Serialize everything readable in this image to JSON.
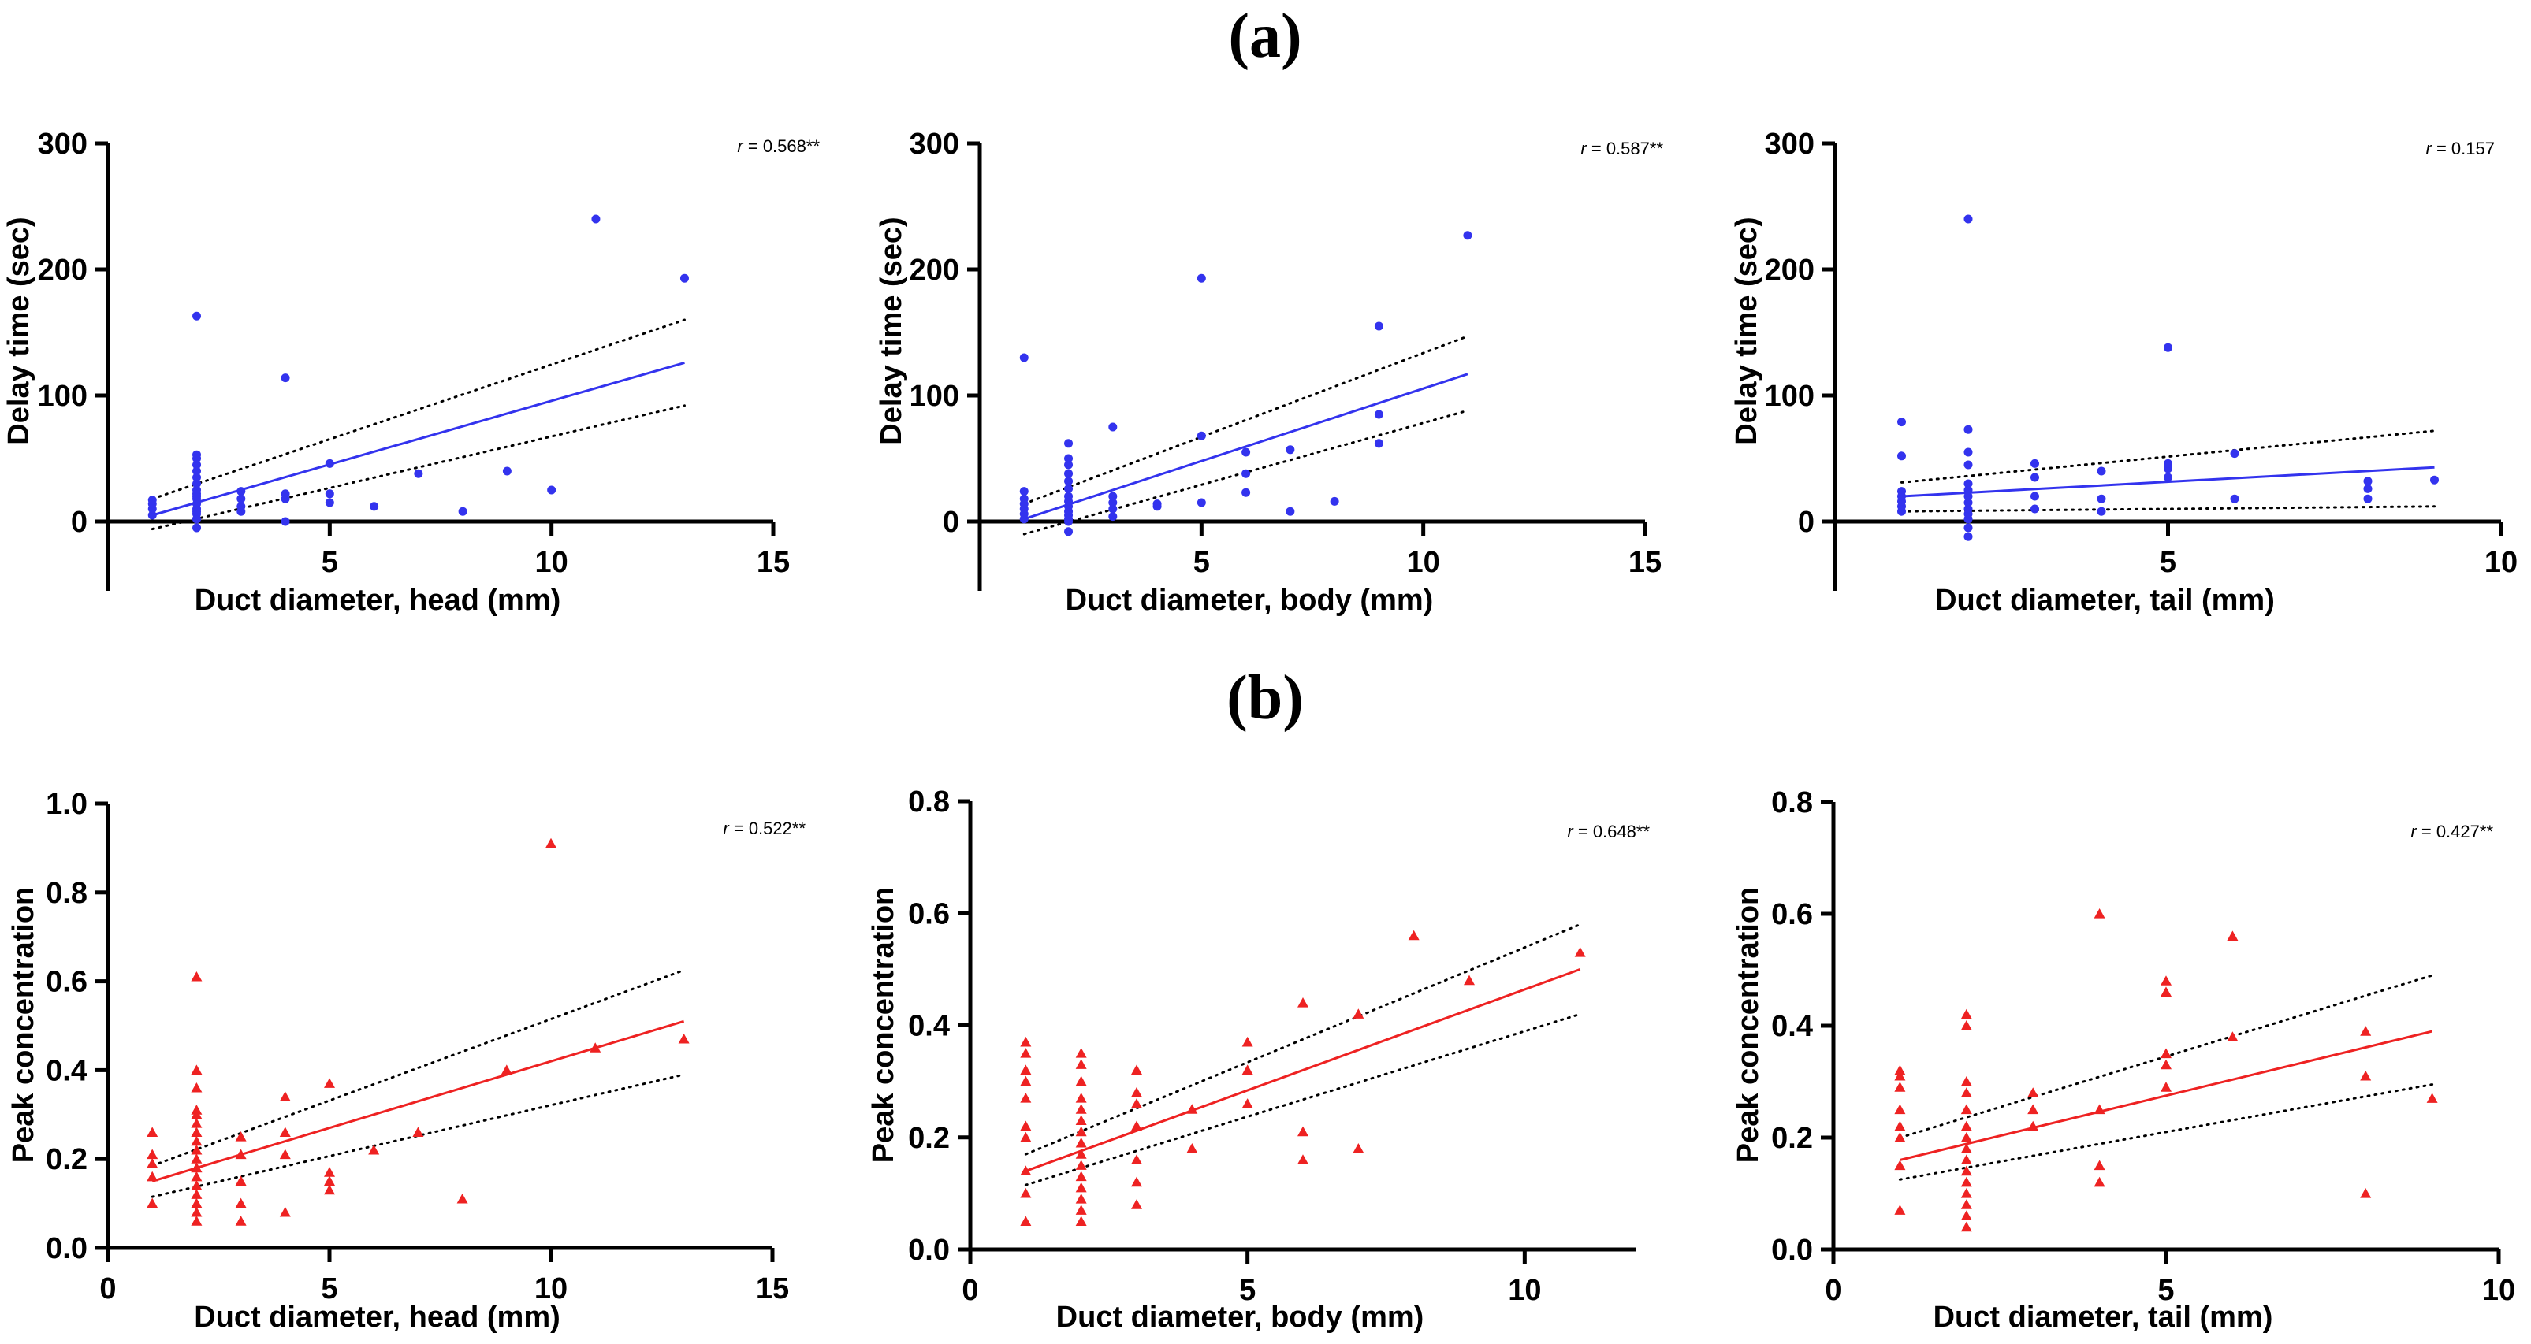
{
  "panel_labels": {
    "a": "(a)",
    "b": "(b)"
  },
  "colors": {
    "blue": "#3333ee",
    "red": "#ee2222"
  },
  "chart_data": [
    {
      "type": "scatter",
      "id": "a1",
      "color": "blue",
      "marker": "circle",
      "ylabel": "Delay time (sec)",
      "xlabel": "Duct diameter, head (mm)",
      "r_label": "r",
      "r_value": "= 0.568**",
      "xlim": [
        0,
        15
      ],
      "ylim": [
        -55,
        300
      ],
      "xticks": [
        5,
        10,
        15
      ],
      "yticks": [
        0,
        100,
        200,
        300
      ],
      "x": [
        1,
        1,
        1,
        1,
        2,
        2,
        2,
        2,
        2,
        2,
        2,
        2,
        2,
        2,
        2,
        2,
        2,
        2,
        2,
        2,
        2,
        2,
        3,
        3,
        3,
        3,
        4,
        4,
        4,
        4,
        5,
        5,
        5,
        6,
        7,
        8,
        9,
        10,
        11,
        13
      ],
      "y": [
        5,
        10,
        14,
        17,
        -5,
        2,
        6,
        10,
        14,
        18,
        22,
        25,
        30,
        35,
        40,
        45,
        50,
        53,
        2,
        8,
        20,
        163,
        8,
        12,
        18,
        24,
        0,
        18,
        22,
        114,
        15,
        22,
        46,
        12,
        38,
        8,
        40,
        25,
        240,
        193
      ],
      "fit": [
        [
          1,
          5
        ],
        [
          13,
          126
        ]
      ],
      "ci_upper": [
        [
          1,
          18
        ],
        [
          13,
          160
        ]
      ],
      "ci_lower": [
        [
          1,
          -6
        ],
        [
          13,
          92
        ]
      ]
    },
    {
      "type": "scatter",
      "id": "a2",
      "color": "blue",
      "marker": "circle",
      "ylabel": "Delay time  (sec)",
      "xlabel": "Duct diameter, body (mm)",
      "r_label": "r",
      "r_value": "= 0.587**",
      "xlim": [
        0,
        15
      ],
      "ylim": [
        -55,
        300
      ],
      "xticks": [
        5,
        10,
        15
      ],
      "yticks": [
        0,
        100,
        200,
        300
      ],
      "x": [
        1,
        1,
        1,
        1,
        1,
        1,
        1,
        2,
        2,
        2,
        2,
        2,
        2,
        2,
        2,
        2,
        2,
        2,
        2,
        2,
        2,
        3,
        3,
        3,
        3,
        3,
        4,
        4,
        5,
        5,
        5,
        6,
        6,
        6,
        7,
        7,
        8,
        9,
        9,
        9,
        11
      ],
      "y": [
        2,
        6,
        10,
        14,
        18,
        24,
        130,
        -8,
        0,
        5,
        8,
        12,
        16,
        20,
        26,
        32,
        38,
        45,
        50,
        62,
        2,
        4,
        10,
        15,
        20,
        75,
        12,
        14,
        15,
        68,
        193,
        23,
        38,
        55,
        8,
        57,
        16,
        62,
        85,
        155,
        227
      ],
      "fit": [
        [
          1,
          2
        ],
        [
          11,
          117
        ]
      ],
      "ci_upper": [
        [
          1,
          14
        ],
        [
          11,
          147
        ]
      ],
      "ci_lower": [
        [
          1,
          -10
        ],
        [
          11,
          88
        ]
      ]
    },
    {
      "type": "scatter",
      "id": "a3",
      "color": "blue",
      "marker": "circle",
      "ylabel": "Delay time  (sec)",
      "xlabel": "Duct diameter, tail  (mm)",
      "r_label": "r",
      "r_value": "= 0.157",
      "xlim": [
        0,
        10
      ],
      "ylim": [
        -55,
        300
      ],
      "xticks": [
        5,
        10
      ],
      "yticks": [
        0,
        100,
        200,
        300
      ],
      "x": [
        1,
        1,
        1,
        1,
        1,
        1,
        1,
        2,
        2,
        2,
        2,
        2,
        2,
        2,
        2,
        2,
        2,
        2,
        2,
        2,
        3,
        3,
        3,
        3,
        4,
        4,
        4,
        5,
        5,
        5,
        5,
        6,
        6,
        8,
        8,
        8,
        9
      ],
      "y": [
        8,
        12,
        16,
        20,
        24,
        52,
        79,
        -12,
        -5,
        2,
        6,
        10,
        15,
        20,
        25,
        30,
        45,
        55,
        73,
        240,
        10,
        20,
        35,
        46,
        8,
        18,
        40,
        35,
        42,
        46,
        138,
        18,
        54,
        18,
        26,
        32,
        33
      ],
      "fit": [
        [
          1,
          20
        ],
        [
          9,
          43
        ]
      ],
      "ci_upper": [
        [
          1,
          31
        ],
        [
          9,
          72
        ]
      ],
      "ci_lower": [
        [
          1,
          8
        ],
        [
          9,
          12
        ]
      ]
    },
    {
      "type": "scatter",
      "id": "b1",
      "color": "red",
      "marker": "triangle",
      "ylabel": "Peak concentration",
      "xlabel": "Duct diameter, head (mm)",
      "r_label": "r",
      "r_value": "= 0.522**",
      "xlim": [
        0,
        15
      ],
      "ylim": [
        0,
        1.0
      ],
      "xticks": [
        0,
        5,
        10,
        15
      ],
      "yticks": [
        0.0,
        0.2,
        0.4,
        0.6,
        0.8,
        1.0
      ],
      "x": [
        1,
        1,
        1,
        1,
        1,
        2,
        2,
        2,
        2,
        2,
        2,
        2,
        2,
        2,
        2,
        2,
        2,
        2,
        2,
        2,
        2,
        2,
        2,
        3,
        3,
        3,
        3,
        3,
        4,
        4,
        4,
        4,
        5,
        5,
        5,
        5,
        6,
        7,
        8,
        9,
        10,
        11,
        13
      ],
      "y": [
        0.1,
        0.16,
        0.19,
        0.21,
        0.26,
        0.06,
        0.08,
        0.1,
        0.12,
        0.14,
        0.16,
        0.18,
        0.2,
        0.22,
        0.24,
        0.26,
        0.28,
        0.3,
        0.31,
        0.36,
        0.4,
        0.61,
        0.18,
        0.06,
        0.1,
        0.15,
        0.21,
        0.25,
        0.08,
        0.21,
        0.26,
        0.34,
        0.13,
        0.15,
        0.17,
        0.37,
        0.22,
        0.26,
        0.11,
        0.4,
        0.91,
        0.45,
        0.47
      ],
      "fit": [
        [
          1,
          0.15
        ],
        [
          13,
          0.51
        ]
      ],
      "ci_upper": [
        [
          1,
          0.185
        ],
        [
          13,
          0.625
        ]
      ],
      "ci_lower": [
        [
          1,
          0.115
        ],
        [
          13,
          0.39
        ]
      ]
    },
    {
      "type": "scatter",
      "id": "b2",
      "color": "red",
      "marker": "triangle",
      "ylabel": "Peak concentration",
      "xlabel": "Duct diameter, body (mm)",
      "r_label": "r",
      "r_value": "= 0.648**",
      "xlim": [
        0,
        12
      ],
      "ylim": [
        0,
        0.8
      ],
      "xticks": [
        0,
        5,
        10
      ],
      "yticks": [
        0.0,
        0.2,
        0.4,
        0.6,
        0.8
      ],
      "x": [
        1,
        1,
        1,
        1,
        1,
        1,
        1,
        1,
        1,
        1,
        2,
        2,
        2,
        2,
        2,
        2,
        2,
        2,
        2,
        2,
        2,
        2,
        2,
        2,
        2,
        3,
        3,
        3,
        3,
        3,
        3,
        3,
        4,
        4,
        5,
        5,
        5,
        6,
        6,
        6,
        7,
        7,
        8,
        9,
        11
      ],
      "y": [
        0.05,
        0.1,
        0.14,
        0.2,
        0.22,
        0.27,
        0.3,
        0.32,
        0.35,
        0.37,
        0.05,
        0.07,
        0.09,
        0.11,
        0.13,
        0.15,
        0.17,
        0.19,
        0.21,
        0.23,
        0.25,
        0.27,
        0.3,
        0.33,
        0.35,
        0.08,
        0.12,
        0.16,
        0.22,
        0.26,
        0.28,
        0.32,
        0.18,
        0.25,
        0.26,
        0.32,
        0.37,
        0.16,
        0.21,
        0.44,
        0.18,
        0.42,
        0.56,
        0.48,
        0.53
      ],
      "fit": [
        [
          1,
          0.14
        ],
        [
          11,
          0.5
        ]
      ],
      "ci_upper": [
        [
          1,
          0.17
        ],
        [
          11,
          0.58
        ]
      ],
      "ci_lower": [
        [
          1,
          0.115
        ],
        [
          11,
          0.42
        ]
      ]
    },
    {
      "type": "scatter",
      "id": "b3",
      "color": "red",
      "marker": "triangle",
      "ylabel": "Peak concentration",
      "xlabel": "Duct diameter, tail (mm)",
      "r_label": "r",
      "r_value": "= 0.427**",
      "xlim": [
        0,
        10
      ],
      "ylim": [
        0,
        0.8
      ],
      "xticks": [
        0,
        5,
        10
      ],
      "yticks": [
        0.0,
        0.2,
        0.4,
        0.6,
        0.8
      ],
      "x": [
        1,
        1,
        1,
        1,
        1,
        1,
        1,
        1,
        2,
        2,
        2,
        2,
        2,
        2,
        2,
        2,
        2,
        2,
        2,
        2,
        2,
        2,
        2,
        3,
        3,
        3,
        4,
        4,
        4,
        4,
        5,
        5,
        5,
        5,
        5,
        6,
        6,
        8,
        8,
        8,
        9
      ],
      "y": [
        0.07,
        0.15,
        0.2,
        0.22,
        0.25,
        0.29,
        0.31,
        0.32,
        0.04,
        0.06,
        0.08,
        0.1,
        0.12,
        0.14,
        0.16,
        0.18,
        0.2,
        0.22,
        0.25,
        0.28,
        0.3,
        0.4,
        0.42,
        0.22,
        0.25,
        0.28,
        0.12,
        0.15,
        0.25,
        0.6,
        0.29,
        0.33,
        0.35,
        0.46,
        0.48,
        0.38,
        0.56,
        0.1,
        0.31,
        0.39,
        0.27
      ],
      "fit": [
        [
          1,
          0.16
        ],
        [
          9,
          0.39
        ]
      ],
      "ci_upper": [
        [
          1,
          0.2
        ],
        [
          9,
          0.49
        ]
      ],
      "ci_lower": [
        [
          1,
          0.125
        ],
        [
          9,
          0.295
        ]
      ]
    }
  ]
}
